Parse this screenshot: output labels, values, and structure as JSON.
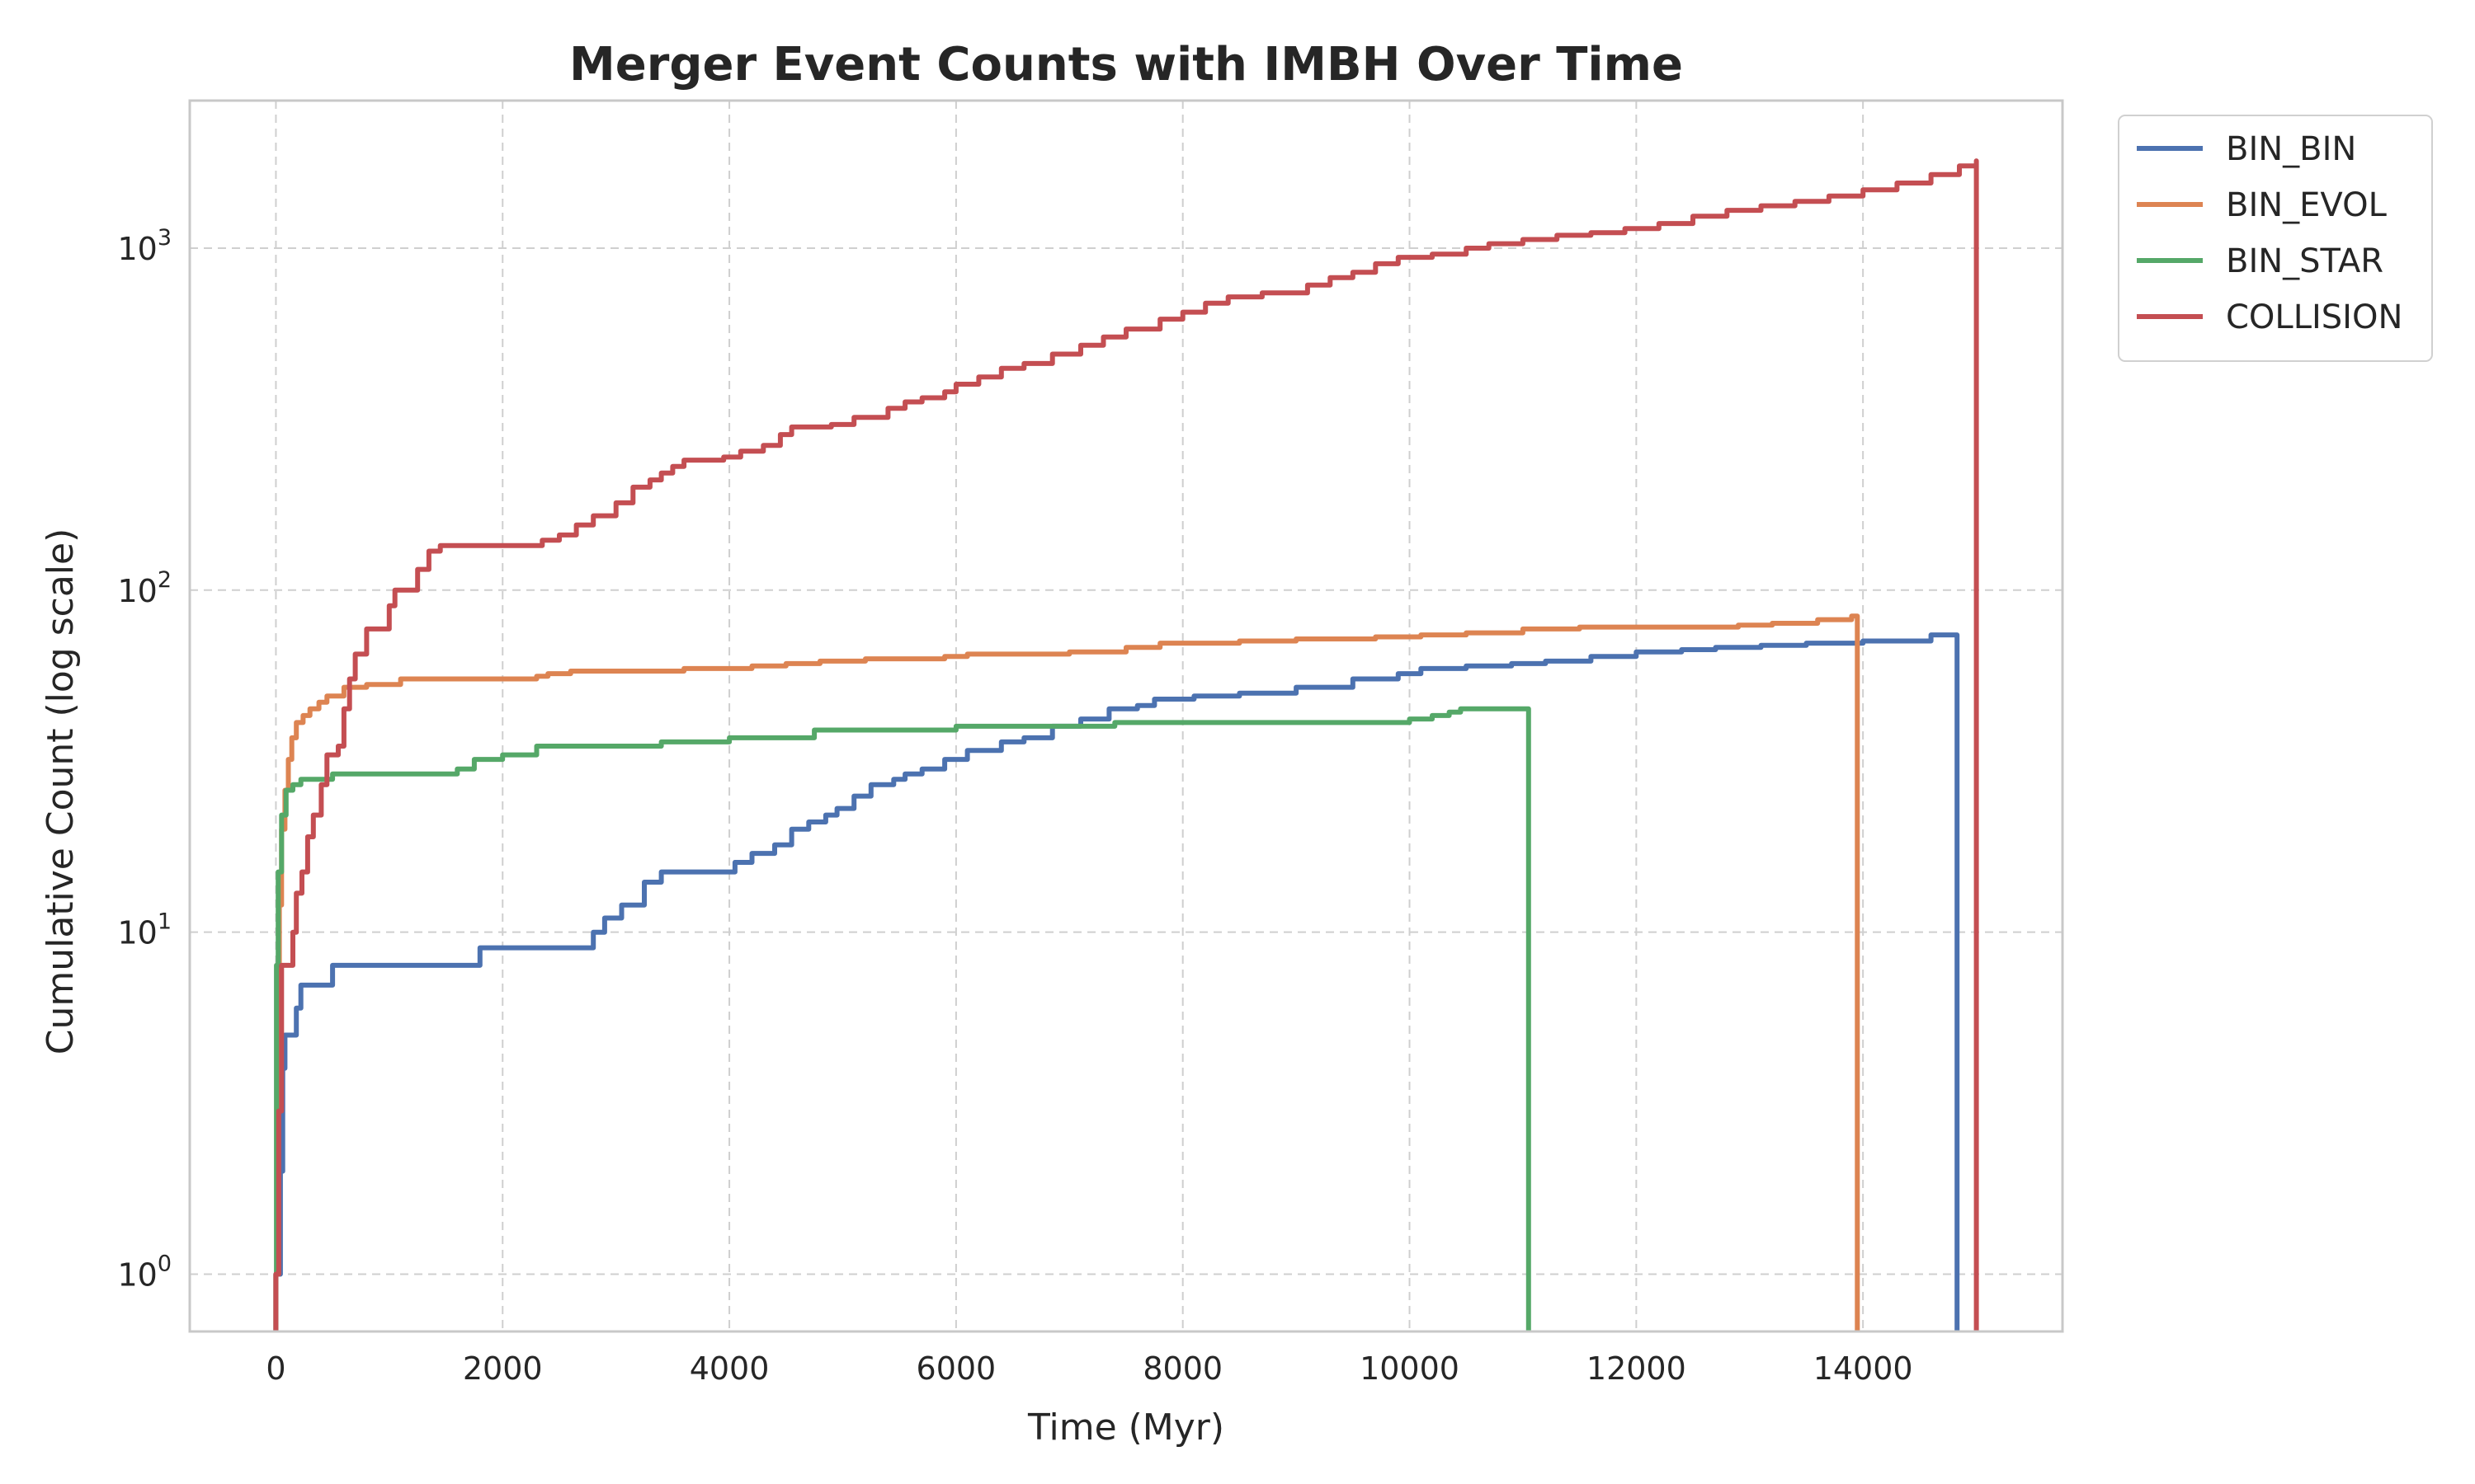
{
  "chart_data": {
    "type": "line",
    "title": "Merger Event Counts with IMBH Over Time",
    "xlabel": "Time (Myr)",
    "ylabel": "Cumulative Count (log scale)",
    "xlim": [
      -760,
      15760
    ],
    "ylim": [
      0.68,
      2700
    ],
    "yscale": "log",
    "grid": true,
    "legend_position": "upper-right-outside",
    "x_ticks": [
      0,
      2000,
      4000,
      6000,
      8000,
      10000,
      12000,
      14000
    ],
    "x_tick_labels": [
      "0",
      "2000",
      "4000",
      "6000",
      "8000",
      "10000",
      "12000",
      "14000"
    ],
    "y_ticks": [
      1,
      10,
      100,
      1000
    ],
    "y_tick_labels": [
      {
        "base": "10",
        "exp": "0"
      },
      {
        "base": "10",
        "exp": "1"
      },
      {
        "base": "10",
        "exp": "2"
      },
      {
        "base": "10",
        "exp": "3"
      }
    ],
    "series": [
      {
        "name": "BIN_BIN",
        "color": "#4c72b0",
        "points": [
          [
            0,
            0.68
          ],
          [
            0,
            1
          ],
          [
            40,
            2
          ],
          [
            60,
            4
          ],
          [
            80,
            5
          ],
          [
            180,
            6
          ],
          [
            220,
            7
          ],
          [
            500,
            8
          ],
          [
            1800,
            9
          ],
          [
            2800,
            10
          ],
          [
            2900,
            11
          ],
          [
            3050,
            12
          ],
          [
            3250,
            14
          ],
          [
            3400,
            15
          ],
          [
            4050,
            16
          ],
          [
            4200,
            17
          ],
          [
            4400,
            18
          ],
          [
            4550,
            20
          ],
          [
            4700,
            21
          ],
          [
            4850,
            22
          ],
          [
            4950,
            23
          ],
          [
            5100,
            25
          ],
          [
            5250,
            27
          ],
          [
            5450,
            28
          ],
          [
            5550,
            29
          ],
          [
            5700,
            30
          ],
          [
            5900,
            32
          ],
          [
            6100,
            34
          ],
          [
            6400,
            36
          ],
          [
            6600,
            37
          ],
          [
            6850,
            40
          ],
          [
            7100,
            42
          ],
          [
            7350,
            45
          ],
          [
            7600,
            46
          ],
          [
            7750,
            48
          ],
          [
            8100,
            49
          ],
          [
            8500,
            50
          ],
          [
            9000,
            52
          ],
          [
            9500,
            55
          ],
          [
            9900,
            57
          ],
          [
            10100,
            59
          ],
          [
            10500,
            60
          ],
          [
            10900,
            61
          ],
          [
            11200,
            62
          ],
          [
            11600,
            64
          ],
          [
            12000,
            66
          ],
          [
            12400,
            67
          ],
          [
            12700,
            68
          ],
          [
            13100,
            69
          ],
          [
            13500,
            70
          ],
          [
            14000,
            71
          ],
          [
            14600,
            74
          ],
          [
            14830,
            74
          ],
          [
            14830,
            0.68
          ]
        ]
      },
      {
        "name": "BIN_EVOL",
        "color": "#dd8452",
        "points": [
          [
            0,
            0.68
          ],
          [
            0,
            1
          ],
          [
            10,
            5
          ],
          [
            30,
            12
          ],
          [
            50,
            20
          ],
          [
            80,
            26
          ],
          [
            110,
            32
          ],
          [
            140,
            37
          ],
          [
            180,
            41
          ],
          [
            240,
            43
          ],
          [
            300,
            45
          ],
          [
            380,
            47
          ],
          [
            450,
            49
          ],
          [
            600,
            52
          ],
          [
            800,
            53
          ],
          [
            1100,
            55
          ],
          [
            2300,
            56
          ],
          [
            2400,
            57
          ],
          [
            2600,
            58
          ],
          [
            3600,
            59
          ],
          [
            4200,
            60
          ],
          [
            4500,
            61
          ],
          [
            4800,
            62
          ],
          [
            5200,
            63
          ],
          [
            5900,
            64
          ],
          [
            6100,
            65
          ],
          [
            7000,
            66
          ],
          [
            7500,
            68
          ],
          [
            7800,
            70
          ],
          [
            8500,
            71
          ],
          [
            9000,
            72
          ],
          [
            9700,
            73
          ],
          [
            10100,
            74
          ],
          [
            10500,
            75
          ],
          [
            11000,
            77
          ],
          [
            11500,
            78
          ],
          [
            12900,
            79
          ],
          [
            13200,
            80
          ],
          [
            13600,
            82
          ],
          [
            13900,
            84
          ],
          [
            13950,
            84
          ],
          [
            13950,
            0.68
          ]
        ]
      },
      {
        "name": "BIN_STAR",
        "color": "#55a868",
        "points": [
          [
            0,
            0.68
          ],
          [
            0,
            1
          ],
          [
            5,
            8
          ],
          [
            20,
            15
          ],
          [
            50,
            22
          ],
          [
            90,
            26
          ],
          [
            150,
            27
          ],
          [
            220,
            28
          ],
          [
            500,
            29
          ],
          [
            1600,
            30
          ],
          [
            1750,
            32
          ],
          [
            2000,
            33
          ],
          [
            2300,
            35
          ],
          [
            3400,
            36
          ],
          [
            4000,
            37
          ],
          [
            4750,
            39
          ],
          [
            6000,
            40
          ],
          [
            7400,
            41
          ],
          [
            10000,
            42
          ],
          [
            10200,
            43
          ],
          [
            10350,
            44
          ],
          [
            10450,
            45
          ],
          [
            11050,
            45
          ],
          [
            11050,
            0.68
          ]
        ]
      },
      {
        "name": "COLLISION",
        "color": "#c44e52",
        "points": [
          [
            0,
            0.68
          ],
          [
            0,
            1
          ],
          [
            25,
            3
          ],
          [
            50,
            8
          ],
          [
            150,
            10
          ],
          [
            180,
            13
          ],
          [
            230,
            15
          ],
          [
            280,
            19
          ],
          [
            330,
            22
          ],
          [
            400,
            27
          ],
          [
            450,
            33
          ],
          [
            550,
            35
          ],
          [
            600,
            45
          ],
          [
            650,
            55
          ],
          [
            700,
            65
          ],
          [
            800,
            77
          ],
          [
            1000,
            90
          ],
          [
            1050,
            100
          ],
          [
            1250,
            115
          ],
          [
            1350,
            130
          ],
          [
            1450,
            135
          ],
          [
            2350,
            140
          ],
          [
            2500,
            145
          ],
          [
            2650,
            155
          ],
          [
            2800,
            165
          ],
          [
            3000,
            180
          ],
          [
            3150,
            200
          ],
          [
            3300,
            210
          ],
          [
            3400,
            220
          ],
          [
            3500,
            230
          ],
          [
            3600,
            240
          ],
          [
            3950,
            245
          ],
          [
            4100,
            255
          ],
          [
            4300,
            265
          ],
          [
            4450,
            285
          ],
          [
            4550,
            300
          ],
          [
            4900,
            305
          ],
          [
            5100,
            320
          ],
          [
            5400,
            340
          ],
          [
            5550,
            355
          ],
          [
            5700,
            365
          ],
          [
            5900,
            380
          ],
          [
            6000,
            400
          ],
          [
            6200,
            420
          ],
          [
            6400,
            445
          ],
          [
            6600,
            460
          ],
          [
            6850,
            490
          ],
          [
            7100,
            520
          ],
          [
            7300,
            550
          ],
          [
            7500,
            580
          ],
          [
            7800,
            620
          ],
          [
            8000,
            650
          ],
          [
            8200,
            690
          ],
          [
            8400,
            720
          ],
          [
            8700,
            740
          ],
          [
            9100,
            780
          ],
          [
            9300,
            820
          ],
          [
            9500,
            850
          ],
          [
            9700,
            900
          ],
          [
            9900,
            940
          ],
          [
            10200,
            960
          ],
          [
            10500,
            1000
          ],
          [
            10700,
            1030
          ],
          [
            11000,
            1060
          ],
          [
            11300,
            1090
          ],
          [
            11600,
            1110
          ],
          [
            11900,
            1140
          ],
          [
            12200,
            1180
          ],
          [
            12500,
            1240
          ],
          [
            12800,
            1290
          ],
          [
            13100,
            1330
          ],
          [
            13400,
            1370
          ],
          [
            13700,
            1420
          ],
          [
            14000,
            1480
          ],
          [
            14300,
            1550
          ],
          [
            14600,
            1640
          ],
          [
            14850,
            1740
          ],
          [
            15000,
            1800
          ],
          [
            15000,
            0.68
          ]
        ]
      }
    ]
  }
}
